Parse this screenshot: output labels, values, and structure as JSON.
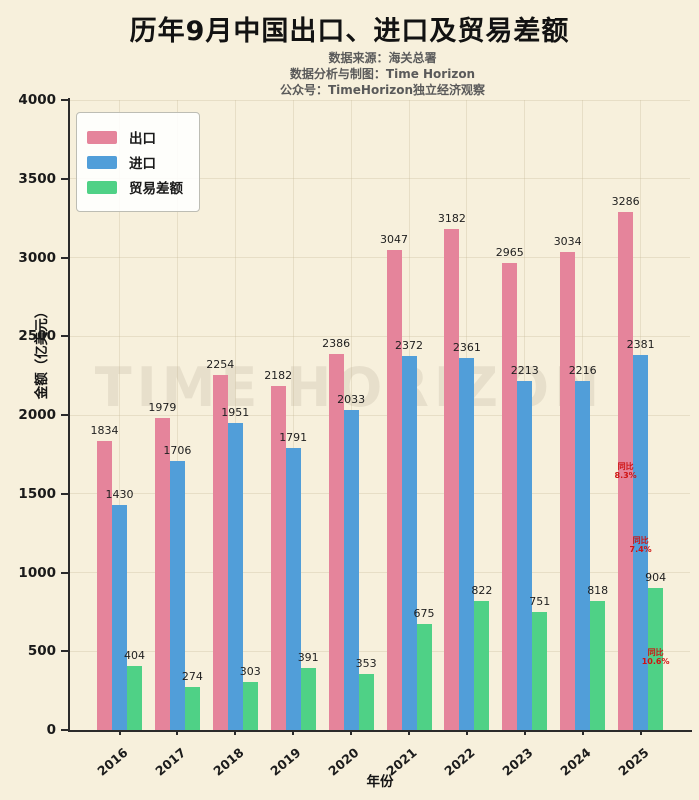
{
  "header": {
    "title": "历年9月中国出口、进口及贸易差额",
    "subtitle_lines": [
      "数据来源：海关总署",
      "数据分析与制图：Time Horizon",
      "公众号：TimeHorizon独立经济观察"
    ]
  },
  "watermark": "TIME HORIZON",
  "colors": {
    "background": "#f7f0dc",
    "axis": "#2b2b2b",
    "annotation_red": "#cf1312",
    "export_pink": "#e5849b",
    "import_blue": "#519ed9",
    "balance_green": "#4fd186"
  },
  "chart_data": {
    "type": "bar",
    "title": "历年9月中国出口、进口及贸易差额",
    "xlabel": "年份",
    "ylabel": "金额（亿美元）",
    "ylim": [
      0,
      4000
    ],
    "yticks": [
      0,
      500,
      1000,
      1500,
      2000,
      2500,
      3000,
      3500,
      4000
    ],
    "grid": true,
    "legend_position": "upper-left",
    "categories": [
      "2016",
      "2017",
      "2018",
      "2019",
      "2020",
      "2021",
      "2022",
      "2023",
      "2024",
      "2025"
    ],
    "series": [
      {
        "name": "出口",
        "key": "export",
        "color": "#e5849b",
        "values": [
          1834,
          1979,
          2254,
          2182,
          2386,
          3047,
          3182,
          2965,
          3034,
          3286
        ]
      },
      {
        "name": "进口",
        "key": "import",
        "color": "#519ed9",
        "values": [
          1430,
          1706,
          1951,
          1791,
          2033,
          2372,
          2361,
          2213,
          2216,
          2381
        ]
      },
      {
        "name": "贸易差额",
        "key": "trade-balance",
        "color": "#4fd186",
        "values": [
          404,
          274,
          303,
          391,
          353,
          675,
          822,
          751,
          818,
          904
        ]
      }
    ],
    "annotations": [
      {
        "lines": [
          "同比",
          "8.3%"
        ],
        "category": "2025",
        "series_index": 0,
        "y_value": 1640,
        "color": "#cf1312"
      },
      {
        "lines": [
          "同比",
          "7.4%"
        ],
        "category": "2025",
        "series_index": 1,
        "y_value": 1170,
        "color": "#cf1312"
      },
      {
        "lines": [
          "同比",
          "10.6%"
        ],
        "category": "2025",
        "series_index": 2,
        "y_value": 460,
        "color": "#cf1312"
      }
    ]
  }
}
